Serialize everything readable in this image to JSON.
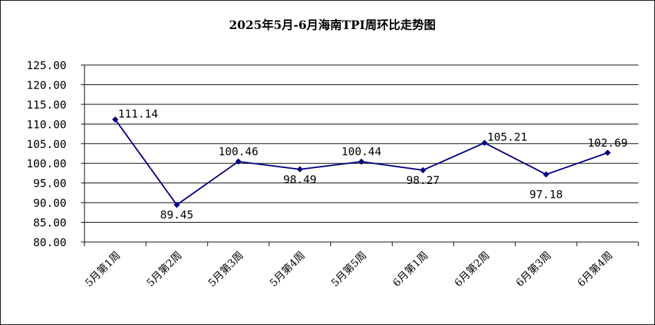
{
  "chart_data": {
    "type": "line",
    "title": "2025年5月-6月海南TPI周环比走势图",
    "xlabel": "",
    "ylabel": "",
    "categories": [
      "5月第1周",
      "5月第2周",
      "5月第3周",
      "5月第4周",
      "5月第5周",
      "6月第1周",
      "6月第2周",
      "6月第3周",
      "6月第4周"
    ],
    "series": [
      {
        "values": [
          111.14,
          89.45,
          100.46,
          98.49,
          100.44,
          98.27,
          105.21,
          97.18,
          102.69
        ],
        "color": "#000080"
      }
    ],
    "data_labels": [
      "111.14",
      "89.45",
      "100.46",
      "98.49",
      "100.44",
      "98.27",
      "105.21",
      "97.18",
      "102.69"
    ],
    "y_ticks": [
      "80.00",
      "85.00",
      "90.00",
      "95.00",
      "100.00",
      "105.00",
      "110.00",
      "115.00",
      "120.00",
      "125.00"
    ],
    "ylim": [
      80,
      125
    ],
    "grid": true,
    "legend": "none"
  }
}
